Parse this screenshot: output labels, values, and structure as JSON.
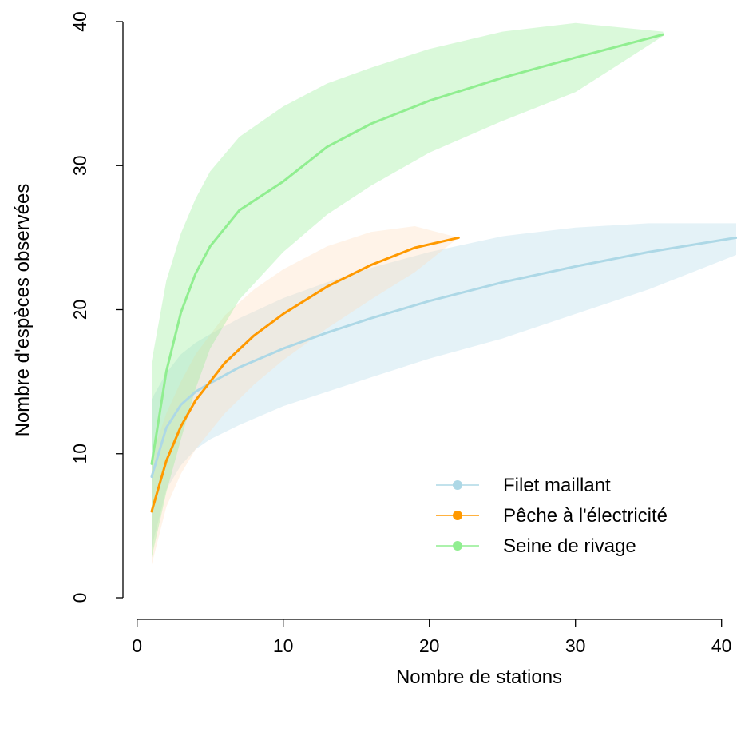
{
  "chart_data": {
    "type": "line",
    "title": "",
    "xlabel": "Nombre de stations",
    "ylabel": "Nombre d'espèces observées",
    "xlim": [
      1,
      41
    ],
    "ylim": [
      0,
      40
    ],
    "x_ticks": [
      0,
      10,
      20,
      30,
      40
    ],
    "y_ticks": [
      0,
      10,
      20,
      30,
      40
    ],
    "grid": false,
    "legend_position": "bottom-right",
    "series": [
      {
        "name": "Filet maillant",
        "color": "#ADD8E6",
        "x": [
          1,
          2,
          3,
          4,
          5,
          7,
          10,
          13,
          16,
          20,
          25,
          30,
          35,
          41
        ],
        "y": [
          8.4,
          11.8,
          13.4,
          14.3,
          14.9,
          16.0,
          17.3,
          18.4,
          19.4,
          20.6,
          21.9,
          23.0,
          24.0,
          25.0
        ],
        "lower": [
          3.5,
          7.5,
          9.2,
          10.3,
          11.0,
          12.0,
          13.3,
          14.3,
          15.3,
          16.6,
          18.0,
          19.7,
          21.4,
          23.8
        ],
        "upper": [
          13.8,
          15.6,
          16.9,
          17.7,
          18.3,
          19.4,
          20.8,
          21.9,
          22.9,
          24.0,
          25.1,
          25.7,
          26.0,
          26.0
        ]
      },
      {
        "name": "Pêche à l'électricité",
        "color": "#FF9900",
        "band_color": "#FFDAB9",
        "x": [
          1,
          2,
          3,
          4,
          6,
          8,
          10,
          13,
          16,
          19,
          22
        ],
        "y": [
          6.0,
          9.5,
          11.9,
          13.7,
          16.3,
          18.2,
          19.7,
          21.6,
          23.1,
          24.3,
          25.0
        ],
        "lower": [
          2.3,
          6.3,
          8.6,
          10.3,
          12.8,
          14.8,
          16.5,
          18.7,
          20.7,
          22.6,
          25.0
        ],
        "upper": [
          9.8,
          12.8,
          15.0,
          16.9,
          19.6,
          21.4,
          22.8,
          24.4,
          25.4,
          25.8,
          25.0
        ]
      },
      {
        "name": "Seine de rivage",
        "color": "#90EE90",
        "x": [
          1,
          2,
          3,
          4,
          5,
          7,
          10,
          13,
          16,
          20,
          25,
          30,
          36
        ],
        "y": [
          9.3,
          15.7,
          19.8,
          22.5,
          24.4,
          26.9,
          28.9,
          31.3,
          32.9,
          34.5,
          36.1,
          37.5,
          39.1
        ],
        "lower": [
          2.8,
          7.3,
          11.0,
          14.5,
          17.3,
          20.7,
          24.0,
          26.6,
          28.6,
          30.9,
          33.1,
          35.1,
          39.0
        ],
        "upper": [
          16.4,
          22.0,
          25.3,
          27.7,
          29.6,
          32.0,
          34.1,
          35.7,
          36.8,
          38.1,
          39.3,
          39.9,
          39.3
        ]
      }
    ]
  }
}
